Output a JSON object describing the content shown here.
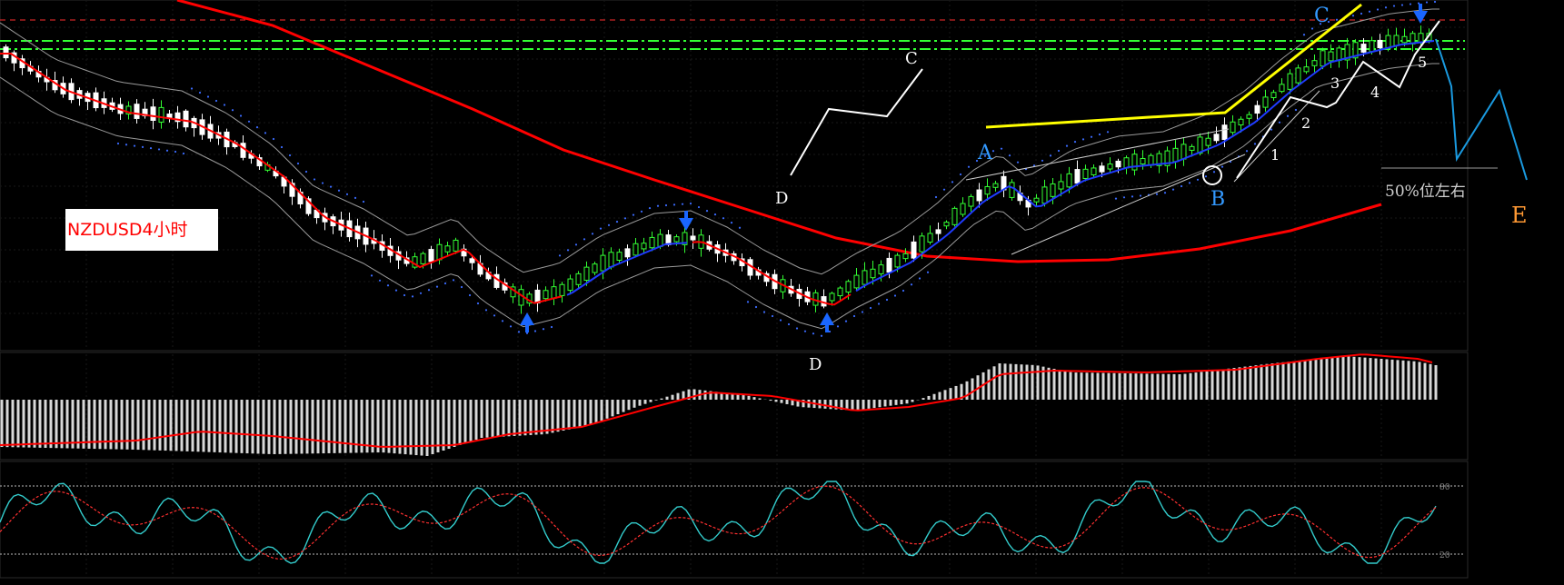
{
  "chart_data": {
    "type": "candlestick",
    "title": "NZDUSD4小时",
    "panels": [
      "price",
      "macd",
      "stochastic"
    ],
    "wave_labels": [
      "A",
      "B",
      "C",
      "D",
      "D",
      "C",
      "1",
      "2",
      "3",
      "4",
      "5",
      "E"
    ],
    "annotation": "50%位左右",
    "stochastic_levels": [
      "80",
      "20"
    ],
    "colors": {
      "background": "#000000",
      "bull_candle": "#33ff33",
      "bear_candle": "#ffffff",
      "ma_red": "#ff0000",
      "ma_blue": "#1f3bff",
      "resistance": "#ff3030",
      "support": "#33ff33",
      "trendline_yellow": "#ffff00",
      "wave_white": "#ffffff",
      "projection_blue": "#1a9ae0",
      "label_blue": "#3399ff",
      "label_orange": "#ff9933",
      "macd_hist": "#d8d8d8",
      "macd_signal": "#ff0000",
      "stoch_main": "#33cccc",
      "stoch_signal": "#ff3030"
    }
  }
}
